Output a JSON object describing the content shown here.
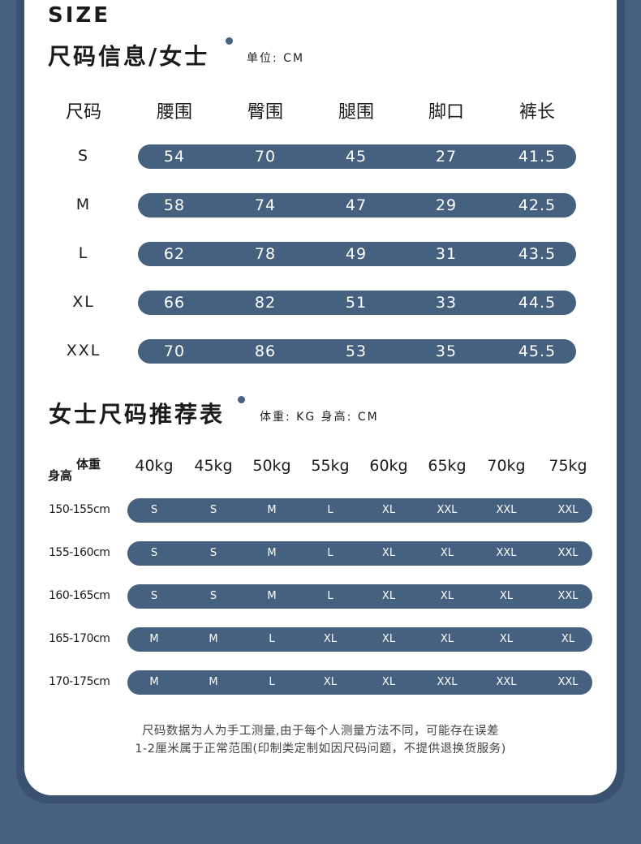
{
  "header": {
    "size_word": "SIZE"
  },
  "section1": {
    "title": "尺码信息/女士",
    "unit": "单位: CM",
    "columns": [
      "尺码",
      "腰围",
      "臀围",
      "腿围",
      "脚口",
      "裤长"
    ],
    "rows": [
      {
        "size": "S",
        "values": [
          "54",
          "70",
          "45",
          "27",
          "41.5"
        ]
      },
      {
        "size": "M",
        "values": [
          "58",
          "74",
          "47",
          "29",
          "42.5"
        ]
      },
      {
        "size": "L",
        "values": [
          "62",
          "78",
          "49",
          "31",
          "43.5"
        ]
      },
      {
        "size": "XL",
        "values": [
          "66",
          "82",
          "51",
          "33",
          "44.5"
        ]
      },
      {
        "size": "XXL",
        "values": [
          "70",
          "86",
          "53",
          "35",
          "45.5"
        ]
      }
    ]
  },
  "section2": {
    "title": "女士尺码推荐表",
    "unit": "体重: KG  身高: CM",
    "corner_weight": "体重",
    "corner_height": "身高",
    "weights": [
      "40kg",
      "45kg",
      "50kg",
      "55kg",
      "60kg",
      "65kg",
      "70kg",
      "75kg"
    ],
    "rows": [
      {
        "height": "150-155cm",
        "sizes": [
          "S",
          "S",
          "M",
          "L",
          "XL",
          "XXL",
          "XXL",
          "XXL"
        ]
      },
      {
        "height": "155-160cm",
        "sizes": [
          "S",
          "S",
          "M",
          "L",
          "XL",
          "XL",
          "XXL",
          "XXL"
        ]
      },
      {
        "height": "160-165cm",
        "sizes": [
          "S",
          "S",
          "M",
          "L",
          "XL",
          "XL",
          "XL",
          "XXL"
        ]
      },
      {
        "height": "165-170cm",
        "sizes": [
          "M",
          "M",
          "L",
          "XL",
          "XL",
          "XL",
          "XL",
          "XL"
        ]
      },
      {
        "height": "170-175cm",
        "sizes": [
          "M",
          "M",
          "L",
          "XL",
          "XL",
          "XXL",
          "XXL",
          "XXL"
        ]
      }
    ]
  },
  "note": {
    "line1": "尺码数据为人为手工测量,由于每个人测量方法不同，可能存在误差",
    "line2": "1-2厘米属于正常范围(印制类定制如因尺码问题，不提供退换货服务)"
  },
  "colors": {
    "accent": "#46607f",
    "background": "#46607f",
    "card": "#ffffff"
  }
}
